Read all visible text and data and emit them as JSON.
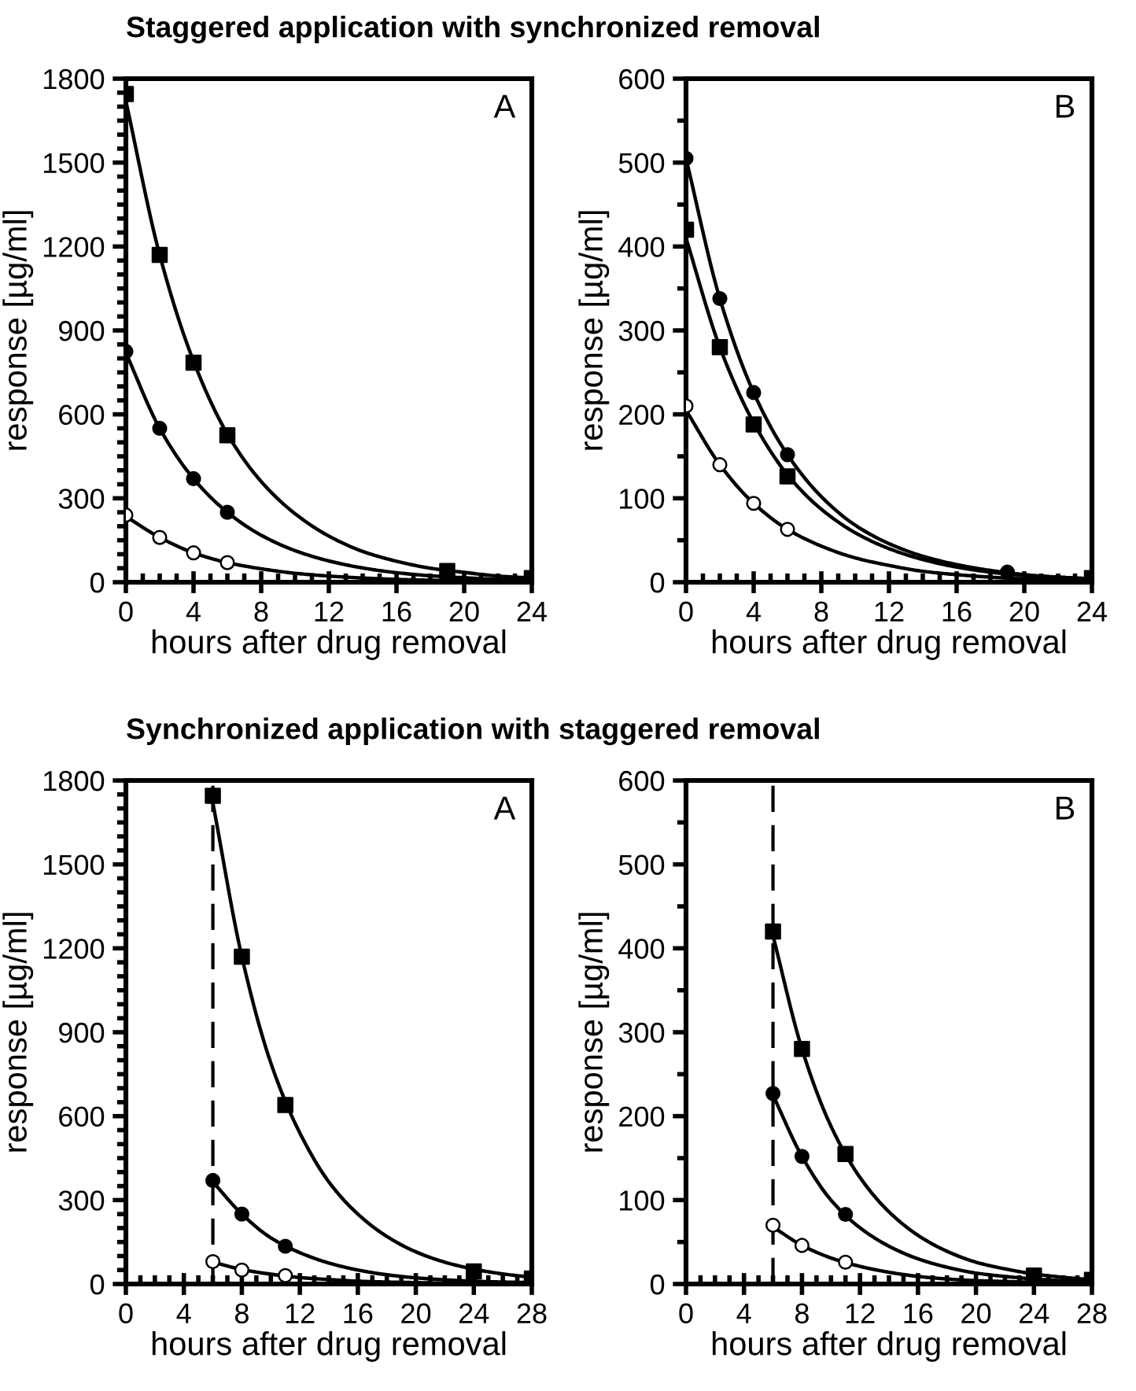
{
  "chart_data": [
    {
      "type": "scatter",
      "title": "Staggered application with synchronized removal",
      "xlabel": "hours after drug removal",
      "ylabel": "response [µg/ml]",
      "annotations": [
        "A"
      ],
      "grid": false,
      "legend": false,
      "xlim": [
        0,
        24
      ],
      "xticks": [
        0,
        {
          "value": 1,
          "label": null
        },
        {
          "value": 2,
          "label": null
        },
        {
          "value": 3,
          "label": null
        },
        4,
        {
          "value": 5,
          "label": null
        },
        {
          "value": 6,
          "label": null
        },
        {
          "value": 7,
          "label": null
        },
        8,
        {
          "value": 9,
          "label": null
        },
        {
          "value": 10,
          "label": null
        },
        {
          "value": 11,
          "label": null
        },
        12,
        {
          "value": 13,
          "label": null
        },
        {
          "value": 14,
          "label": null
        },
        {
          "value": 15,
          "label": null
        },
        16,
        {
          "value": 17,
          "label": null
        },
        {
          "value": 18,
          "label": null
        },
        {
          "value": 19,
          "label": null
        },
        20,
        {
          "value": 21,
          "label": null
        },
        {
          "value": 22,
          "label": null
        },
        {
          "value": 23,
          "label": null
        },
        24
      ],
      "ylim": [
        0,
        1800
      ],
      "yticks": [
        0,
        {
          "value": 50,
          "label": null
        },
        {
          "value": 100,
          "label": null
        },
        {
          "value": 150,
          "label": null
        },
        {
          "value": 200,
          "label": null
        },
        {
          "value": 250,
          "label": null
        },
        300,
        {
          "value": 350,
          "label": null
        },
        {
          "value": 400,
          "label": null
        },
        {
          "value": 450,
          "label": null
        },
        {
          "value": 500,
          "label": null
        },
        {
          "value": 550,
          "label": null
        },
        600,
        {
          "value": 650,
          "label": null
        },
        {
          "value": 700,
          "label": null
        },
        {
          "value": 750,
          "label": null
        },
        {
          "value": 800,
          "label": null
        },
        {
          "value": 850,
          "label": null
        },
        900,
        {
          "value": 950,
          "label": null
        },
        {
          "value": 1000,
          "label": null
        },
        {
          "value": 1050,
          "label": null
        },
        {
          "value": 1100,
          "label": null
        },
        {
          "value": 1150,
          "label": null
        },
        1200,
        {
          "value": 1250,
          "label": null
        },
        {
          "value": 1300,
          "label": null
        },
        {
          "value": 1350,
          "label": null
        },
        {
          "value": 1400,
          "label": null
        },
        {
          "value": 1450,
          "label": null
        },
        1500,
        {
          "value": 1550,
          "label": null
        },
        {
          "value": 1600,
          "label": null
        },
        {
          "value": 1650,
          "label": null
        },
        {
          "value": 1700,
          "label": null
        },
        {
          "value": 1750,
          "label": null
        },
        1800
      ],
      "series": [
        {
          "type": "line",
          "color": "#000000",
          "marker": "none",
          "line_style": "solid",
          "x": [
            0,
            2,
            4,
            6,
            8,
            10,
            12,
            14,
            16,
            18,
            20,
            22,
            24
          ],
          "values": [
            1720,
            1170,
            790,
            530,
            360,
            245,
            165,
            110,
            75,
            50,
            35,
            22,
            15
          ]
        },
        {
          "type": "line",
          "color": "#000000",
          "marker": "none",
          "line_style": "solid",
          "x": [
            0,
            2,
            4,
            6,
            8,
            10,
            12,
            14,
            16,
            18,
            20,
            22,
            24
          ],
          "values": [
            820,
            550,
            370,
            250,
            168,
            113,
            76,
            51,
            34,
            23,
            16,
            10,
            7
          ]
        },
        {
          "type": "line",
          "color": "#000000",
          "marker": "none",
          "line_style": "solid",
          "x": [
            0,
            2,
            4,
            6,
            8,
            10,
            12,
            14,
            16,
            18,
            20,
            22,
            24
          ],
          "values": [
            235,
            160,
            105,
            70,
            48,
            32,
            22,
            15,
            10,
            7,
            5,
            3,
            2
          ]
        },
        {
          "type": "scatter",
          "color": "#000000",
          "marker": "square",
          "x": [
            0,
            2,
            4,
            6,
            19,
            24
          ],
          "values": [
            1745,
            1170,
            785,
            525,
            40,
            15
          ]
        },
        {
          "type": "scatter",
          "color": "#000000",
          "marker": "circle",
          "x": [
            0,
            2,
            4,
            6
          ],
          "values": [
            825,
            550,
            370,
            250
          ]
        },
        {
          "type": "scatter",
          "color": "#ffffff",
          "marker": "circle",
          "x": [
            0,
            2,
            4,
            6
          ],
          "values": [
            240,
            160,
            105,
            70
          ]
        }
      ]
    },
    {
      "type": "scatter",
      "xlabel": "hours after drug removal",
      "ylabel": "response [µg/ml]",
      "annotations": [
        "B"
      ],
      "grid": false,
      "legend": false,
      "xlim": [
        0,
        24
      ],
      "xticks": [
        0,
        {
          "value": 1,
          "label": null
        },
        {
          "value": 2,
          "label": null
        },
        {
          "value": 3,
          "label": null
        },
        4,
        {
          "value": 5,
          "label": null
        },
        {
          "value": 6,
          "label": null
        },
        {
          "value": 7,
          "label": null
        },
        8,
        {
          "value": 9,
          "label": null
        },
        {
          "value": 10,
          "label": null
        },
        {
          "value": 11,
          "label": null
        },
        12,
        {
          "value": 13,
          "label": null
        },
        {
          "value": 14,
          "label": null
        },
        {
          "value": 15,
          "label": null
        },
        16,
        {
          "value": 17,
          "label": null
        },
        {
          "value": 18,
          "label": null
        },
        {
          "value": 19,
          "label": null
        },
        20,
        {
          "value": 21,
          "label": null
        },
        {
          "value": 22,
          "label": null
        },
        {
          "value": 23,
          "label": null
        },
        24
      ],
      "ylim": [
        0,
        600
      ],
      "yticks": [
        0,
        {
          "value": 50,
          "label": null
        },
        100,
        {
          "value": 150,
          "label": null
        },
        200,
        {
          "value": 250,
          "label": null
        },
        300,
        {
          "value": 350,
          "label": null
        },
        400,
        {
          "value": 450,
          "label": null
        },
        500,
        {
          "value": 550,
          "label": null
        },
        600
      ],
      "series": [
        {
          "type": "line",
          "color": "#000000",
          "marker": "none",
          "line_style": "solid",
          "x": [
            0,
            2,
            4,
            6,
            8,
            10,
            12,
            14,
            16,
            18,
            20,
            22,
            24
          ],
          "values": [
            505,
            338,
            226,
            152,
            102,
            68,
            46,
            31,
            21,
            14,
            9,
            6,
            4
          ]
        },
        {
          "type": "line",
          "color": "#000000",
          "marker": "none",
          "line_style": "solid",
          "x": [
            0,
            2,
            4,
            6,
            8,
            10,
            12,
            14,
            16,
            18,
            20,
            22,
            24
          ],
          "values": [
            410,
            280,
            190,
            128,
            87,
            59,
            40,
            27,
            18,
            12,
            8,
            6,
            4
          ]
        },
        {
          "type": "line",
          "color": "#000000",
          "marker": "none",
          "line_style": "solid",
          "x": [
            0,
            2,
            4,
            6,
            8,
            10,
            12,
            14,
            16,
            18,
            20,
            22,
            24
          ],
          "values": [
            205,
            140,
            94,
            63,
            43,
            29,
            20,
            13,
            9,
            6,
            4,
            3,
            2
          ]
        },
        {
          "color": "#000000",
          "marker": "circle",
          "x": [
            0,
            2,
            4,
            6,
            19
          ],
          "values": [
            505,
            338,
            226,
            152,
            12
          ]
        },
        {
          "type": "scatter",
          "color": "#000000",
          "marker": "square",
          "x": [
            0,
            2,
            4,
            6,
            24
          ],
          "values": [
            420,
            280,
            188,
            126,
            5
          ]
        },
        {
          "type": "scatter",
          "color": "#ffffff",
          "marker": "circle",
          "x": [
            0,
            2,
            4,
            6
          ],
          "values": [
            210,
            140,
            94,
            63
          ]
        }
      ]
    },
    {
      "type": "scatter",
      "title": "Synchronized application with staggered removal",
      "xlabel": "hours after drug removal",
      "ylabel": "response [µg/ml]",
      "annotations": [
        "A"
      ],
      "grid": false,
      "legend": false,
      "xlim": [
        0,
        28
      ],
      "xticks": [
        0,
        {
          "value": 1,
          "label": null
        },
        {
          "value": 2,
          "label": null
        },
        {
          "value": 3,
          "label": null
        },
        4,
        {
          "value": 5,
          "label": null
        },
        {
          "value": 6,
          "label": null
        },
        {
          "value": 7,
          "label": null
        },
        8,
        {
          "value": 9,
          "label": null
        },
        {
          "value": 10,
          "label": null
        },
        {
          "value": 11,
          "label": null
        },
        12,
        {
          "value": 13,
          "label": null
        },
        {
          "value": 14,
          "label": null
        },
        {
          "value": 15,
          "label": null
        },
        16,
        {
          "value": 17,
          "label": null
        },
        {
          "value": 18,
          "label": null
        },
        {
          "value": 19,
          "label": null
        },
        20,
        {
          "value": 21,
          "label": null
        },
        {
          "value": 22,
          "label": null
        },
        {
          "value": 23,
          "label": null
        },
        24,
        {
          "value": 25,
          "label": null
        },
        {
          "value": 26,
          "label": null
        },
        {
          "value": 27,
          "label": null
        },
        28
      ],
      "ylim": [
        0,
        1800
      ],
      "yticks": [
        0,
        {
          "value": 50,
          "label": null
        },
        {
          "value": 100,
          "label": null
        },
        {
          "value": 150,
          "label": null
        },
        {
          "value": 200,
          "label": null
        },
        {
          "value": 250,
          "label": null
        },
        300,
        {
          "value": 350,
          "label": null
        },
        {
          "value": 400,
          "label": null
        },
        {
          "value": 450,
          "label": null
        },
        {
          "value": 500,
          "label": null
        },
        {
          "value": 550,
          "label": null
        },
        600,
        {
          "value": 650,
          "label": null
        },
        {
          "value": 700,
          "label": null
        },
        {
          "value": 750,
          "label": null
        },
        {
          "value": 800,
          "label": null
        },
        {
          "value": 850,
          "label": null
        },
        900,
        {
          "value": 950,
          "label": null
        },
        {
          "value": 1000,
          "label": null
        },
        {
          "value": 1050,
          "label": null
        },
        {
          "value": 1100,
          "label": null
        },
        {
          "value": 1150,
          "label": null
        },
        1200,
        {
          "value": 1250,
          "label": null
        },
        {
          "value": 1300,
          "label": null
        },
        {
          "value": 1350,
          "label": null
        },
        {
          "value": 1400,
          "label": null
        },
        {
          "value": 1450,
          "label": null
        },
        1500,
        {
          "value": 1550,
          "label": null
        },
        {
          "value": 1600,
          "label": null
        },
        {
          "value": 1650,
          "label": null
        },
        {
          "value": 1700,
          "label": null
        },
        {
          "value": 1750,
          "label": null
        },
        1800
      ],
      "ref_lines": [
        {
          "axis": "x",
          "value": 6,
          "color": "#000000",
          "line_style": "dashed"
        }
      ],
      "series": [
        {
          "type": "line",
          "color": "#000000",
          "marker": "none",
          "line_style": "solid",
          "x": [
            6,
            8,
            10,
            12,
            14,
            16,
            18,
            20,
            22,
            24,
            26,
            28
          ],
          "values": [
            1720,
            1170,
            790,
            540,
            365,
            250,
            170,
            115,
            78,
            53,
            36,
            24
          ]
        },
        {
          "type": "line",
          "color": "#000000",
          "marker": "none",
          "line_style": "solid",
          "x": [
            6,
            8,
            10,
            12,
            14,
            16,
            18,
            20,
            22,
            24,
            26,
            28
          ],
          "values": [
            365,
            250,
            165,
            112,
            75,
            50,
            33,
            22,
            15,
            10,
            7,
            5
          ]
        },
        {
          "type": "line",
          "color": "#000000",
          "marker": "none",
          "line_style": "solid",
          "x": [
            6,
            8,
            10,
            12,
            14,
            16,
            18,
            20,
            22,
            24,
            26,
            28
          ],
          "values": [
            78,
            52,
            35,
            23,
            16,
            10,
            7,
            5,
            3,
            2,
            1,
            1
          ]
        },
        {
          "type": "scatter",
          "color": "#000000",
          "marker": "square",
          "x": [
            6,
            8,
            11,
            24,
            28
          ],
          "values": [
            1745,
            1170,
            640,
            45,
            20
          ]
        },
        {
          "color": "#000000",
          "marker": "circle",
          "x": [
            6,
            8,
            11
          ],
          "values": [
            370,
            250,
            135
          ]
        },
        {
          "type": "scatter",
          "color": "#ffffff",
          "marker": "circle",
          "x": [
            6,
            8,
            11
          ],
          "values": [
            80,
            50,
            30
          ]
        }
      ]
    },
    {
      "type": "scatter",
      "xlabel": "hours after drug removal",
      "ylabel": "response [µg/ml]",
      "annotations": [
        "B"
      ],
      "grid": false,
      "legend": false,
      "xlim": [
        0,
        28
      ],
      "xticks": [
        0,
        {
          "value": 1,
          "label": null
        },
        {
          "value": 2,
          "label": null
        },
        {
          "value": 3,
          "label": null
        },
        4,
        {
          "value": 5,
          "label": null
        },
        {
          "value": 6,
          "label": null
        },
        {
          "value": 7,
          "label": null
        },
        8,
        {
          "value": 9,
          "label": null
        },
        {
          "value": 10,
          "label": null
        },
        {
          "value": 11,
          "label": null
        },
        12,
        {
          "value": 13,
          "label": null
        },
        {
          "value": 14,
          "label": null
        },
        {
          "value": 15,
          "label": null
        },
        16,
        {
          "value": 17,
          "label": null
        },
        {
          "value": 18,
          "label": null
        },
        {
          "value": 19,
          "label": null
        },
        20,
        {
          "value": 21,
          "label": null
        },
        {
          "value": 22,
          "label": null
        },
        {
          "value": 23,
          "label": null
        },
        24,
        {
          "value": 25,
          "label": null
        },
        {
          "value": 26,
          "label": null
        },
        {
          "value": 27,
          "label": null
        },
        28
      ],
      "ylim": [
        0,
        600
      ],
      "yticks": [
        0,
        {
          "value": 50,
          "label": null
        },
        100,
        {
          "value": 150,
          "label": null
        },
        200,
        {
          "value": 250,
          "label": null
        },
        300,
        {
          "value": 350,
          "label": null
        },
        400,
        {
          "value": 450,
          "label": null
        },
        500,
        {
          "value": 550,
          "label": null
        },
        600
      ],
      "ref_lines": [
        {
          "axis": "x",
          "value": 6,
          "color": "#000000",
          "line_style": "dashed"
        }
      ],
      "series": [
        {
          "type": "line",
          "color": "#000000",
          "marker": "none",
          "line_style": "solid",
          "x": [
            6,
            8,
            10,
            12,
            14,
            16,
            18,
            20,
            22,
            24,
            26,
            28
          ],
          "values": [
            415,
            280,
            188,
            127,
            86,
            58,
            39,
            26,
            18,
            12,
            8,
            5
          ]
        },
        {
          "type": "line",
          "color": "#000000",
          "marker": "none",
          "line_style": "solid",
          "x": [
            6,
            8,
            10,
            12,
            14,
            16,
            18,
            20,
            22,
            24,
            26,
            28
          ],
          "values": [
            225,
            152,
            100,
            67,
            45,
            30,
            20,
            13,
            9,
            6,
            4,
            3
          ]
        },
        {
          "type": "line",
          "color": "#000000",
          "marker": "none",
          "line_style": "solid",
          "x": [
            6,
            8,
            10,
            12,
            14,
            16,
            18,
            20,
            22,
            24,
            26,
            28
          ],
          "values": [
            68,
            46,
            31,
            21,
            14,
            9,
            6,
            4,
            3,
            2,
            1,
            1
          ]
        },
        {
          "type": "scatter",
          "color": "#000000",
          "marker": "square",
          "x": [
            6,
            8,
            11,
            24,
            28
          ],
          "values": [
            420,
            280,
            155,
            10,
            5
          ]
        },
        {
          "color": "#000000",
          "marker": "circle",
          "x": [
            6,
            8,
            11
          ],
          "values": [
            227,
            152,
            83
          ]
        },
        {
          "type": "scatter",
          "color": "#ffffff",
          "marker": "circle",
          "x": [
            6,
            8,
            11
          ],
          "values": [
            70,
            46,
            26
          ]
        }
      ]
    }
  ]
}
